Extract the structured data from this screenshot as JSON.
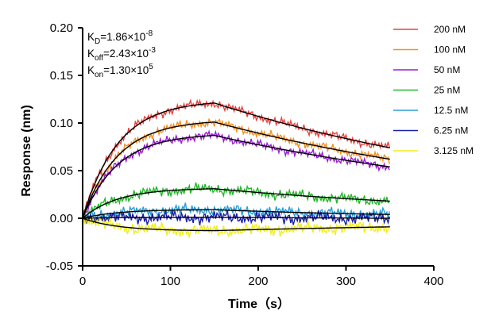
{
  "chart_data": {
    "type": "line",
    "xlabel": "Time（s）",
    "ylabel": "Response (nm)",
    "xlim": [
      0,
      400
    ],
    "ylim": [
      -0.05,
      0.2
    ],
    "x_ticks": [
      "0",
      "100",
      "200",
      "300",
      "400"
    ],
    "y_ticks": [
      "-0.05",
      "0.00",
      "0.05",
      "0.10",
      "0.15",
      "0.20"
    ],
    "grid": false,
    "legend_position": "top-right",
    "kinetics": [
      {
        "sym": "K",
        "sub": "D",
        "mant": "=1.86×10",
        "exp": "-8"
      },
      {
        "sym": "K",
        "sub": "off",
        "mant": "=2.43×10",
        "exp": "-3"
      },
      {
        "sym": "K",
        "sub": "on",
        "mant": "=1.30×10",
        "exp": "5"
      }
    ],
    "association_end_s": 150,
    "end_s": 350,
    "series": [
      {
        "name": "200 nM",
        "color": "#e8423f",
        "fit_plateau": 0.121,
        "fit_end": 0.074,
        "noise_amp": 0.005,
        "noise_phase": 0.3
      },
      {
        "name": "100 nM",
        "color": "#f39125",
        "fit_plateau": 0.101,
        "fit_end": 0.062,
        "noise_amp": 0.005,
        "noise_phase": 1.1
      },
      {
        "name": "50 nM",
        "color": "#9b1fd1",
        "fit_plateau": 0.087,
        "fit_end": 0.054,
        "noise_amp": 0.005,
        "noise_phase": 2.0
      },
      {
        "name": "25 nM",
        "color": "#23b82a",
        "fit_plateau": 0.031,
        "fit_end": 0.018,
        "noise_amp": 0.006,
        "noise_phase": 2.7
      },
      {
        "name": "12.5 nM",
        "color": "#2a9fd6",
        "fit_plateau": 0.009,
        "fit_end": 0.004,
        "noise_amp": 0.006,
        "noise_phase": 3.6
      },
      {
        "name": "6.25 nM",
        "color": "#1c1fa8",
        "fit_plateau": 0.001,
        "fit_end": 0.0,
        "noise_amp": 0.007,
        "noise_phase": 4.4
      },
      {
        "name": "3.125 nM",
        "color": "#f2ee1e",
        "fit_plateau": -0.013,
        "fit_end": -0.009,
        "noise_amp": 0.007,
        "noise_phase": 5.3
      }
    ]
  }
}
